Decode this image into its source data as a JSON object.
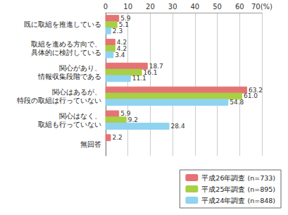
{
  "chart_data": {
    "type": "bar",
    "orientation": "horizontal",
    "categories": [
      "既に取組を推進している",
      "取組を進める方向で、\n具体的に検討している",
      "関心があり、\n情報収集段階である",
      "関心はあるが、\n特段の取組は行っていない",
      "関心はなく、\n取組も行っていない",
      "無回答"
    ],
    "series": [
      {
        "name": "平成26年調査 (n=733)",
        "color": "#e57373",
        "values": [
          5.9,
          4.2,
          18.7,
          63.2,
          5.9,
          2.2
        ]
      },
      {
        "name": "平成25年調査 (n=895)",
        "color": "#a8cf45",
        "values": [
          5.1,
          4.2,
          16.1,
          61.0,
          9.2,
          null
        ],
        "value_labels": [
          "5.1",
          "4.2",
          "16.1",
          "61.0",
          "9.2",
          null
        ]
      },
      {
        "name": "平成24年調査 (n=848)",
        "color": "#8fd3f0",
        "values": [
          2.3,
          3.4,
          11.1,
          54.8,
          28.4,
          null
        ]
      }
    ],
    "xlim": [
      0,
      70
    ],
    "xticks": [
      0,
      10,
      20,
      30,
      40,
      50,
      60,
      {
        "value": 70,
        "label": "70(%)"
      }
    ],
    "grid": true,
    "legend": "bottom-right",
    "data_labels": true
  }
}
